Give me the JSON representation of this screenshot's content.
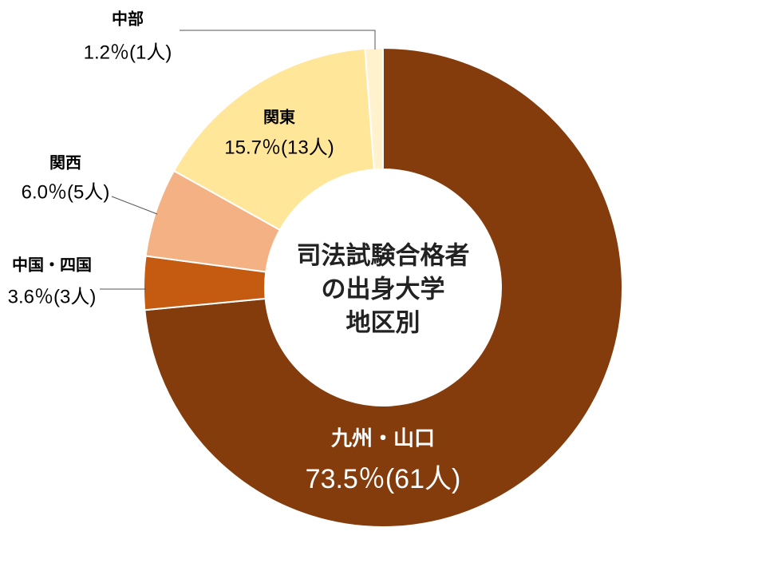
{
  "chart_data": {
    "type": "donut",
    "title_lines": [
      "司法試験合格者",
      "の出身大学",
      "地区別"
    ],
    "categories": [
      "九州・山口",
      "中国・四国",
      "関西",
      "関東",
      "中部"
    ],
    "values": [
      73.5,
      3.6,
      6.0,
      15.7,
      1.2
    ],
    "value_labels": [
      "73.5％(61人)",
      "3.6％(3人)",
      "6.0％(5人)",
      "15.7％(13人)",
      "1.2％(1人)"
    ],
    "colors": [
      "#843C0C",
      "#C55A11",
      "#F4B183",
      "#FFE699",
      "#FFF2CC"
    ]
  }
}
